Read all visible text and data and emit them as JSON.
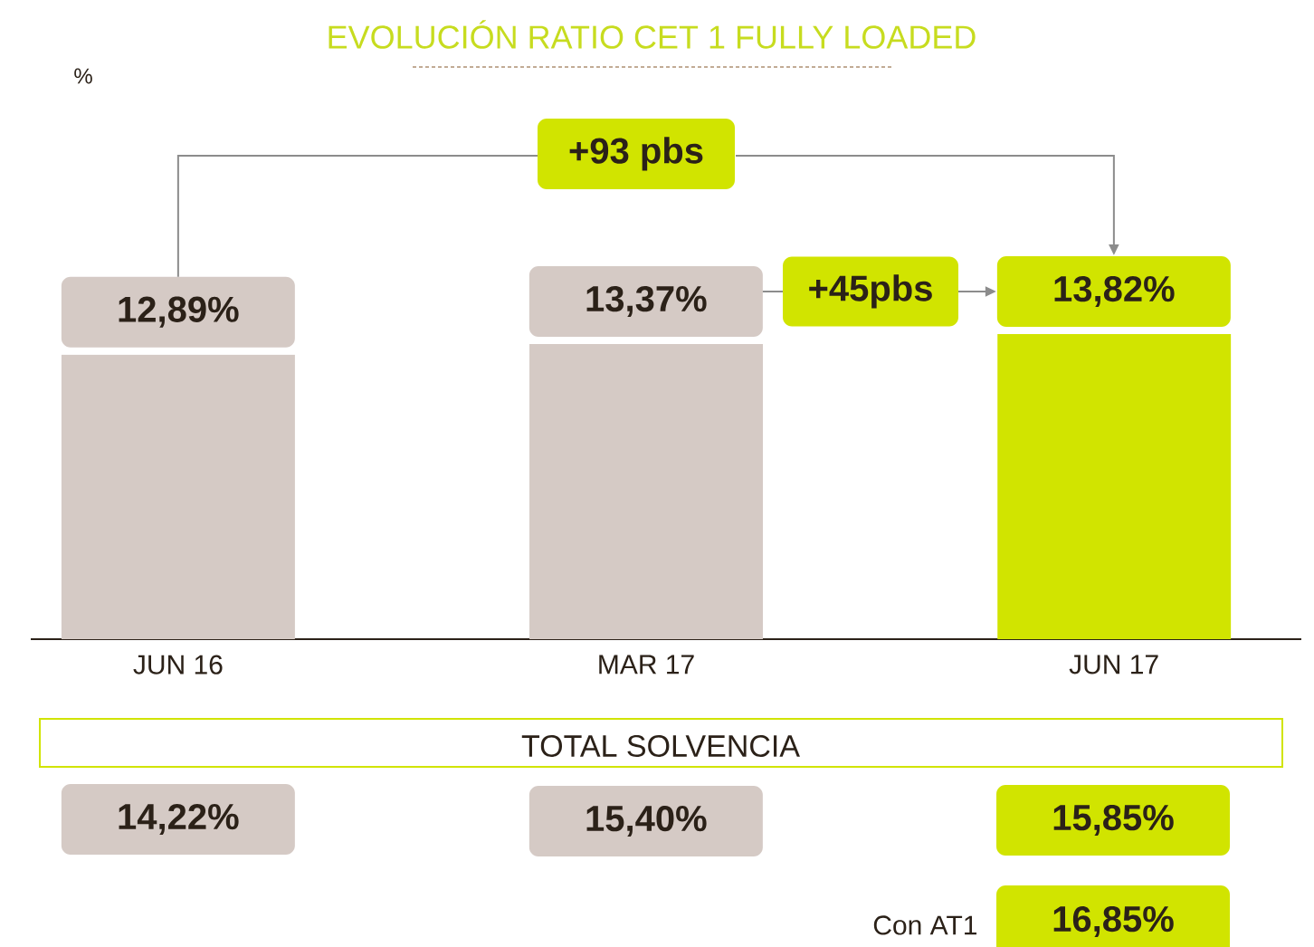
{
  "chart_data": {
    "type": "bar",
    "title": "EVOLUCIÓN RATIO CET 1 FULLY LOADED",
    "categories": [
      "JUN 16",
      "MAR 17",
      "JUN 17"
    ],
    "values": [
      12.89,
      13.37,
      13.82
    ],
    "colors": [
      "#d5cac5",
      "#d5cac5",
      "#d1e400"
    ],
    "value_labels": [
      "12,89%",
      "13,37%",
      "13,82%"
    ],
    "tick_labels": "x",
    "annotations": [
      "+93 pbs",
      "+45pbs",
      "TOTAL SOLVENCIA",
      "14,22%",
      "15,40%",
      "15,85%",
      "Con AT1",
      "16,85%",
      "%"
    ]
  }
}
